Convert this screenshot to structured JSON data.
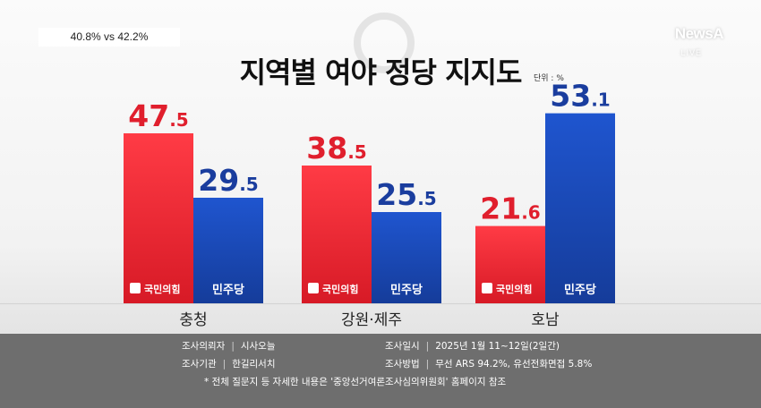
{
  "topleft_label": "40.8% vs 42.2%",
  "logo": {
    "brand": "NewsA",
    "live": "LIVE"
  },
  "chart_data": {
    "type": "bar",
    "title": "지역별 여야 정당 지지도",
    "unit_label": "단위 : %",
    "categories": [
      "충청",
      "강원·제주",
      "호남"
    ],
    "series": [
      {
        "name": "국민의힘",
        "values": [
          47.5,
          38.5,
          21.6
        ],
        "color": "#e5202e"
      },
      {
        "name": "민주당",
        "values": [
          29.5,
          25.5,
          53.1
        ],
        "color": "#1a47b3"
      }
    ],
    "value_labels": [
      [
        "47.5",
        "38.5",
        "21.6"
      ],
      [
        "29.5",
        "25.5",
        "53.1"
      ]
    ],
    "party_logos": [
      "국민의힘",
      "민주당"
    ],
    "ylim": [
      0,
      60
    ],
    "grid": false
  },
  "survey_info": {
    "left": [
      {
        "label": "조사의뢰자",
        "value": "시사오늘"
      },
      {
        "label": "조사기관",
        "value": "한길리서치"
      }
    ],
    "right": [
      {
        "label": "조사일시",
        "value": "2025년 1월 11~12일(2일간)"
      },
      {
        "label": "조사방법",
        "value": "무선 ARS 94.2%, 유선전화면접 5.8%"
      }
    ],
    "footnote": "* 전체 질문지 등 자세한 내용은 '중앙선거여론조사심의위원회' 홈페이지 참조"
  }
}
